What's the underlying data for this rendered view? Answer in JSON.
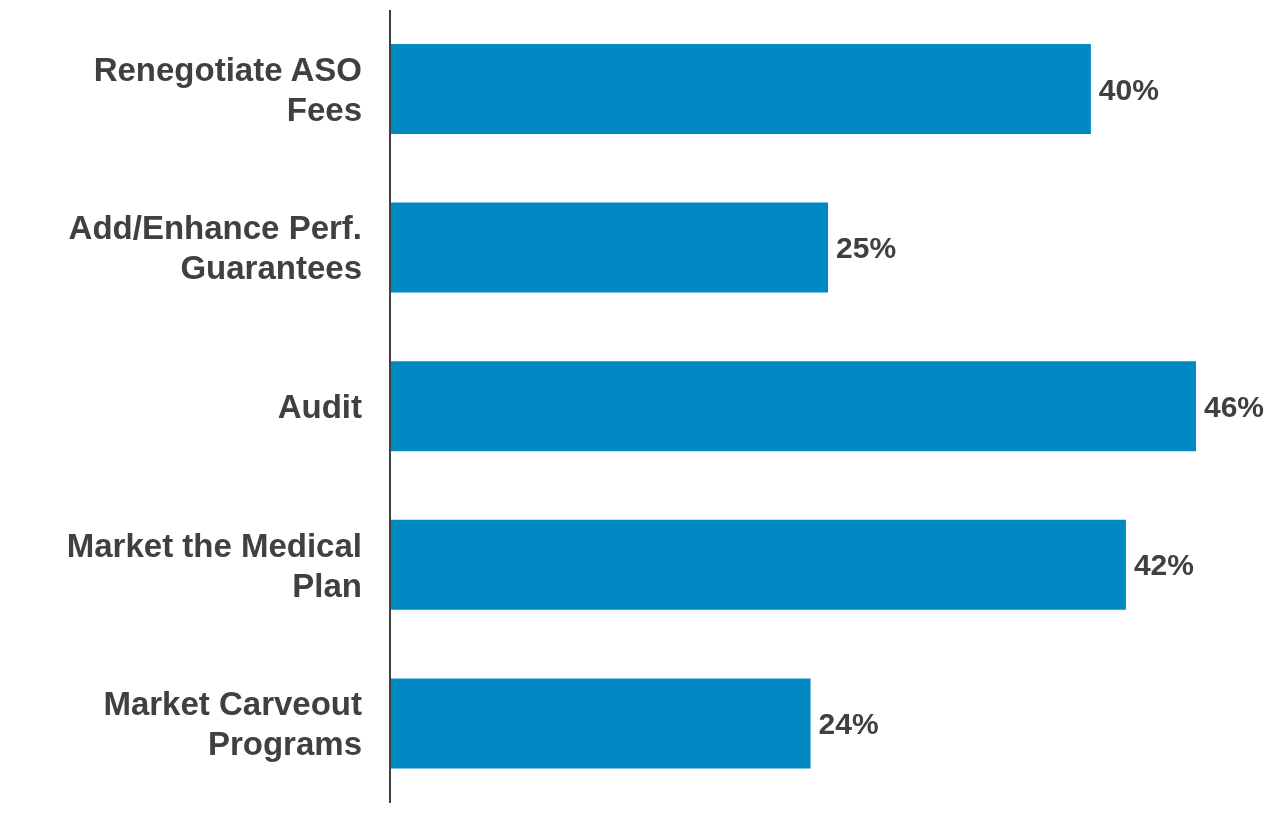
{
  "chart_data": {
    "type": "bar",
    "orientation": "horizontal",
    "categories": [
      "Renegotiate ASO Fees",
      "Add/Enhance Perf. Guarantees",
      "Audit",
      "Market the Medical Plan",
      "Market Carveout Programs"
    ],
    "values": [
      40,
      25,
      46,
      42,
      24
    ],
    "value_labels": [
      "40%",
      "25%",
      "46%",
      "42%",
      "24%"
    ],
    "color": "#0089c2",
    "grid": false,
    "legend": false
  }
}
